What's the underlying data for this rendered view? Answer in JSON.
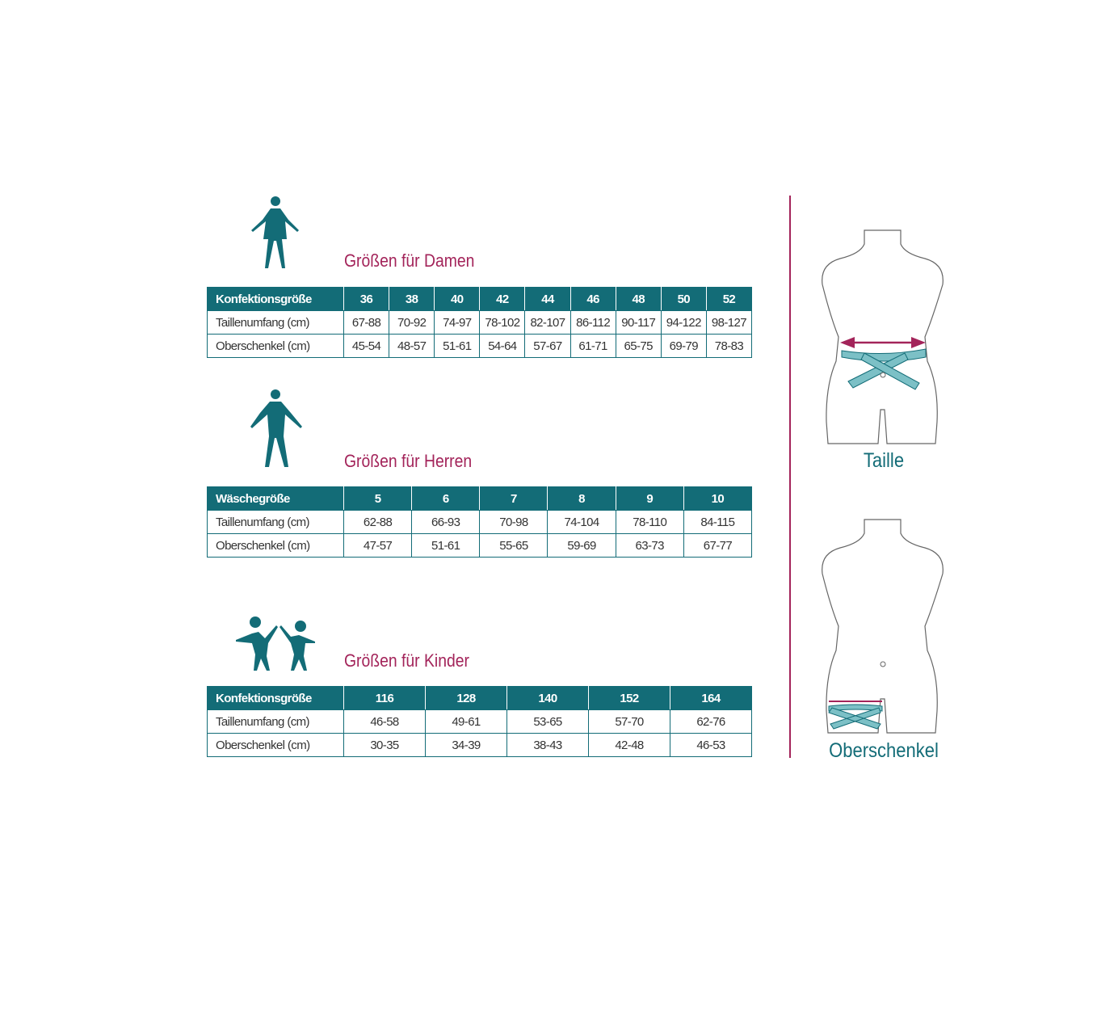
{
  "colors": {
    "teal": "#136c77",
    "magenta": "#a3245a"
  },
  "sections": [
    {
      "title": "Größen für Damen",
      "icon": "woman-icon",
      "header": [
        "Konfektionsgröße",
        "36",
        "38",
        "40",
        "42",
        "44",
        "46",
        "48",
        "50",
        "52"
      ],
      "rows": [
        [
          "Taillenumfang (cm)",
          "67-88",
          "70-92",
          "74-97",
          "78-102",
          "82-107",
          "86-112",
          "90-117",
          "94-122",
          "98-127"
        ],
        [
          "Oberschenkel (cm)",
          "45-54",
          "48-57",
          "51-61",
          "54-64",
          "57-67",
          "61-71",
          "65-75",
          "69-79",
          "78-83"
        ]
      ]
    },
    {
      "title": "Größen für Herren",
      "icon": "man-icon",
      "header": [
        "Wäschegröße",
        "5",
        "6",
        "7",
        "8",
        "9",
        "10"
      ],
      "rows": [
        [
          "Taillenumfang (cm)",
          "62-88",
          "66-93",
          "70-98",
          "74-104",
          "78-110",
          "84-115"
        ],
        [
          "Oberschenkel (cm)",
          "47-57",
          "51-61",
          "55-65",
          "59-69",
          "63-73",
          "67-77"
        ]
      ]
    },
    {
      "title": "Größen für Kinder",
      "icon": "children-icon",
      "header": [
        "Konfektionsgröße",
        "116",
        "128",
        "140",
        "152",
        "164"
      ],
      "rows": [
        [
          "Taillenumfang (cm)",
          "46-58",
          "49-61",
          "53-65",
          "57-70",
          "62-76"
        ],
        [
          "Oberschenkel (cm)",
          "30-35",
          "34-39",
          "38-43",
          "42-48",
          "46-53"
        ]
      ]
    }
  ],
  "figures": {
    "waist_label": "Taille",
    "thigh_label": "Oberschenkel"
  }
}
